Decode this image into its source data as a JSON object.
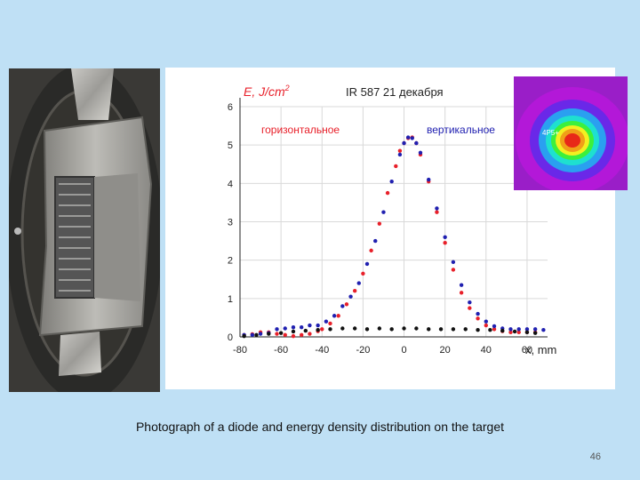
{
  "caption": "Photograph of a diode and energy density distribution on the target",
  "page_number": "46",
  "inset": {
    "label": "4P5+"
  },
  "chart_data": {
    "type": "scatter",
    "title": "IR 587 21 декабря",
    "ylabel": "E, J/cm",
    "ylabel_sup": "2",
    "xlabel": "x, mm",
    "xlim": [
      -80,
      70
    ],
    "ylim": [
      0,
      6
    ],
    "x_ticks": [
      -80,
      -60,
      -40,
      -20,
      0,
      20,
      40,
      60
    ],
    "y_ticks": [
      0,
      1,
      2,
      3,
      4,
      5,
      6
    ],
    "grid": true,
    "legend_position": "top",
    "series": [
      {
        "name": "горизонтальное",
        "color": "#e8202a",
        "points": [
          [
            -78,
            0.05
          ],
          [
            -74,
            0.07
          ],
          [
            -70,
            0.12
          ],
          [
            -66,
            0.12
          ],
          [
            -62,
            0.08
          ],
          [
            -58,
            0.05
          ],
          [
            -54,
            0.02
          ],
          [
            -50,
            0.05
          ],
          [
            -46,
            0.08
          ],
          [
            -42,
            0.15
          ],
          [
            -40,
            0.2
          ],
          [
            -36,
            0.35
          ],
          [
            -32,
            0.55
          ],
          [
            -28,
            0.85
          ],
          [
            -24,
            1.2
          ],
          [
            -20,
            1.65
          ],
          [
            -16,
            2.25
          ],
          [
            -12,
            2.95
          ],
          [
            -8,
            3.75
          ],
          [
            -4,
            4.45
          ],
          [
            -2,
            4.85
          ],
          [
            0,
            5.05
          ],
          [
            2,
            5.18
          ],
          [
            4,
            5.2
          ],
          [
            6,
            5.05
          ],
          [
            8,
            4.75
          ],
          [
            12,
            4.05
          ],
          [
            16,
            3.25
          ],
          [
            20,
            2.45
          ],
          [
            24,
            1.75
          ],
          [
            28,
            1.15
          ],
          [
            32,
            0.75
          ],
          [
            36,
            0.48
          ],
          [
            40,
            0.3
          ],
          [
            44,
            0.2
          ],
          [
            48,
            0.15
          ],
          [
            52,
            0.12
          ],
          [
            56,
            0.12
          ],
          [
            60,
            0.12
          ],
          [
            64,
            0.12
          ]
        ]
      },
      {
        "name": "вертикальное",
        "color": "#2020b0",
        "points": [
          [
            -78,
            0.05
          ],
          [
            -74,
            0.05
          ],
          [
            -70,
            0.08
          ],
          [
            -66,
            0.1
          ],
          [
            -62,
            0.2
          ],
          [
            -58,
            0.22
          ],
          [
            -54,
            0.25
          ],
          [
            -50,
            0.25
          ],
          [
            -46,
            0.3
          ],
          [
            -42,
            0.3
          ],
          [
            -38,
            0.4
          ],
          [
            -34,
            0.55
          ],
          [
            -30,
            0.8
          ],
          [
            -26,
            1.05
          ],
          [
            -22,
            1.4
          ],
          [
            -18,
            1.9
          ],
          [
            -14,
            2.5
          ],
          [
            -10,
            3.25
          ],
          [
            -6,
            4.05
          ],
          [
            -2,
            4.75
          ],
          [
            0,
            5.05
          ],
          [
            2,
            5.2
          ],
          [
            4,
            5.18
          ],
          [
            6,
            5.05
          ],
          [
            8,
            4.8
          ],
          [
            12,
            4.1
          ],
          [
            16,
            3.35
          ],
          [
            20,
            2.6
          ],
          [
            24,
            1.95
          ],
          [
            28,
            1.35
          ],
          [
            32,
            0.9
          ],
          [
            36,
            0.6
          ],
          [
            40,
            0.4
          ],
          [
            44,
            0.28
          ],
          [
            48,
            0.22
          ],
          [
            52,
            0.2
          ],
          [
            56,
            0.2
          ],
          [
            60,
            0.2
          ],
          [
            64,
            0.2
          ],
          [
            68,
            0.18
          ]
        ]
      },
      {
        "name": "",
        "color": "#111111",
        "points": [
          [
            -78,
            0.02
          ],
          [
            -72,
            0.05
          ],
          [
            -66,
            0.08
          ],
          [
            -60,
            0.1
          ],
          [
            -54,
            0.14
          ],
          [
            -48,
            0.16
          ],
          [
            -42,
            0.18
          ],
          [
            -36,
            0.2
          ],
          [
            -30,
            0.22
          ],
          [
            -24,
            0.22
          ],
          [
            -18,
            0.2
          ],
          [
            -12,
            0.22
          ],
          [
            -6,
            0.2
          ],
          [
            0,
            0.22
          ],
          [
            6,
            0.22
          ],
          [
            12,
            0.2
          ],
          [
            18,
            0.2
          ],
          [
            24,
            0.2
          ],
          [
            30,
            0.2
          ],
          [
            36,
            0.18
          ],
          [
            42,
            0.18
          ],
          [
            48,
            0.16
          ],
          [
            54,
            0.14
          ],
          [
            60,
            0.12
          ],
          [
            64,
            0.1
          ]
        ]
      }
    ]
  }
}
